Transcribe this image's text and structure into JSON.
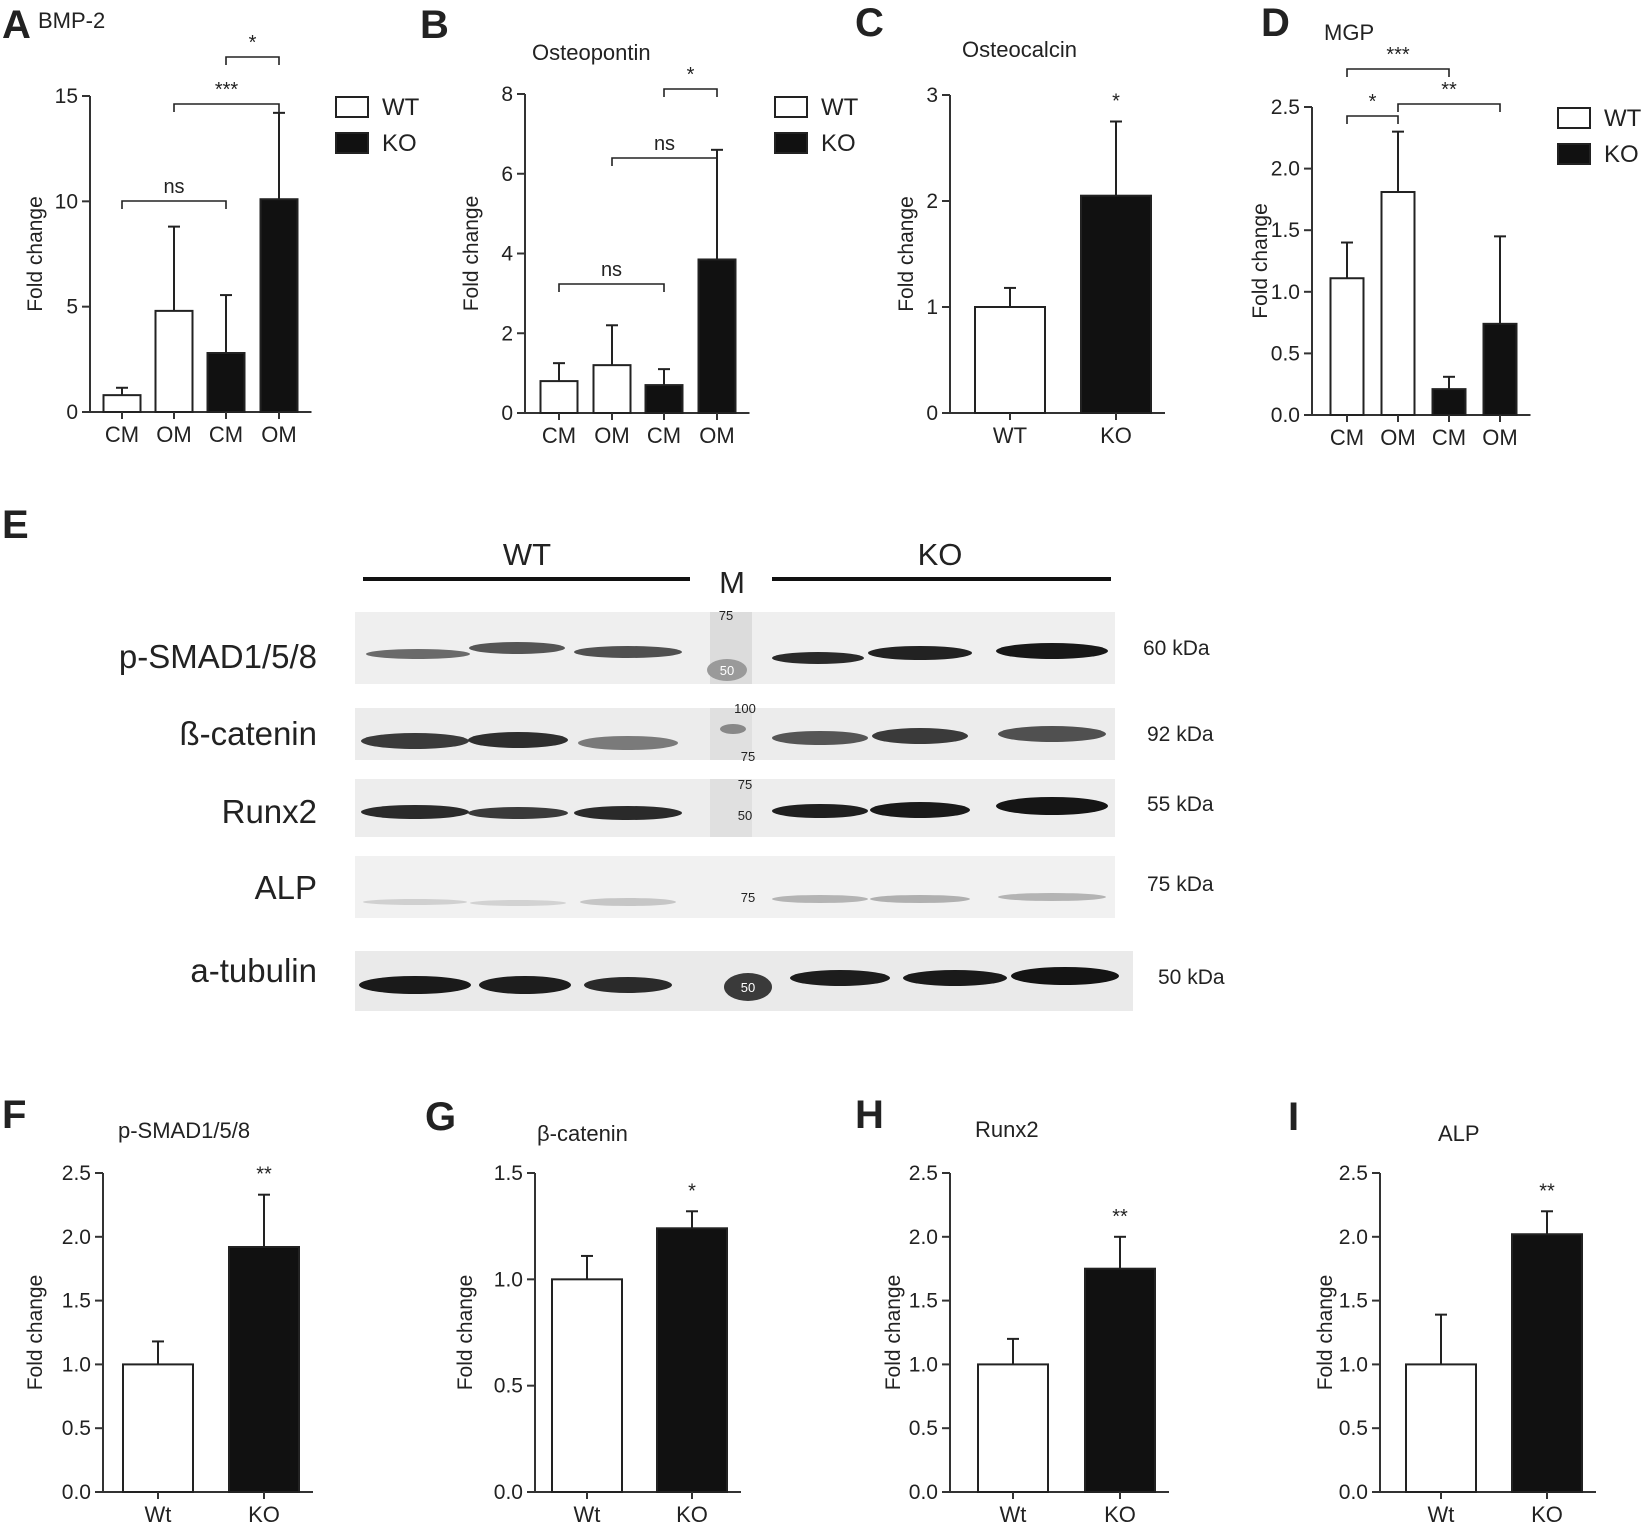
{
  "figure_title": "",
  "panels": {
    "A": {
      "letter": "A",
      "title": "BMP-2",
      "ylabel": "Fold change",
      "legend": [
        {
          "label": "WT",
          "fill": "#ffffff"
        },
        {
          "label": "KO",
          "fill": "#111111"
        }
      ]
    },
    "B": {
      "letter": "B",
      "title": "Osteopontin",
      "ylabel": "Fold change",
      "legend": [
        {
          "label": "WT",
          "fill": "#ffffff"
        },
        {
          "label": "KO",
          "fill": "#111111"
        }
      ]
    },
    "C": {
      "letter": "C",
      "title": "Osteocalcin",
      "ylabel": "Fold change"
    },
    "D": {
      "letter": "D",
      "title": "MGP",
      "ylabel": "Fold change",
      "legend": [
        {
          "label": "WT",
          "fill": "#ffffff"
        },
        {
          "label": "KO",
          "fill": "#111111"
        }
      ]
    },
    "F": {
      "letter": "F",
      "title": "p-SMAD1/5/8",
      "ylabel": "Fold change"
    },
    "G": {
      "letter": "G",
      "title": "β-catenin",
      "ylabel": "Fold change"
    },
    "H": {
      "letter": "H",
      "title": "Runx2",
      "ylabel": "Fold change"
    },
    "I": {
      "letter": "I",
      "title": "ALP",
      "ylabel": "Fold change"
    }
  },
  "blot": {
    "letter": "E",
    "groups": [
      "WT",
      "M",
      "KO"
    ],
    "rows": [
      {
        "label": "p-SMAD1/5/8",
        "kda": "60 kDa",
        "markers": [
          "75",
          "50"
        ]
      },
      {
        "label": "ß-catenin",
        "kda": "92 kDa",
        "markers": [
          "100",
          "75"
        ]
      },
      {
        "label": "Runx2",
        "kda": "55 kDa",
        "markers": [
          "75",
          "50"
        ]
      },
      {
        "label": "ALP",
        "kda": "75 kDa",
        "markers": [
          "75"
        ]
      },
      {
        "label": "a-tubulin",
        "kda": "50 kDa",
        "markers": [
          "50"
        ]
      }
    ]
  },
  "chart_data": [
    {
      "id": "A",
      "type": "bar",
      "title": "BMP-2",
      "ylabel": "Fold change",
      "categories": [
        "CM",
        "OM",
        "CM",
        "OM"
      ],
      "groups": [
        "WT",
        "WT",
        "KO",
        "KO"
      ],
      "values": [
        0.8,
        4.8,
        2.8,
        10.1
      ],
      "errors": [
        0.35,
        4.0,
        2.75,
        4.1
      ],
      "ylim": [
        0,
        15
      ],
      "yticks": [
        "0",
        "5",
        "10",
        "15"
      ],
      "legend": [
        "WT",
        "KO"
      ],
      "legend_position": "right",
      "significance": [
        {
          "from": 0,
          "to": 2,
          "label": "ns"
        },
        {
          "from": 1,
          "to": 3,
          "label": "***"
        },
        {
          "from": 2,
          "to": 3,
          "label": "*"
        }
      ]
    },
    {
      "id": "B",
      "type": "bar",
      "title": "Osteopontin",
      "ylabel": "Fold change",
      "categories": [
        "CM",
        "OM",
        "CM",
        "OM"
      ],
      "groups": [
        "WT",
        "WT",
        "KO",
        "KO"
      ],
      "values": [
        0.8,
        1.2,
        0.7,
        3.85
      ],
      "errors": [
        0.45,
        1.0,
        0.4,
        2.75
      ],
      "ylim": [
        0,
        8
      ],
      "yticks": [
        "0",
        "2",
        "4",
        "6",
        "8"
      ],
      "legend": [
        "WT",
        "KO"
      ],
      "legend_position": "right",
      "significance": [
        {
          "from": 0,
          "to": 2,
          "label": "ns"
        },
        {
          "from": 1,
          "to": 3,
          "label": "ns"
        },
        {
          "from": 2,
          "to": 3,
          "label": "*"
        }
      ]
    },
    {
      "id": "C",
      "type": "bar",
      "title": "Osteocalcin",
      "ylabel": "Fold change",
      "categories": [
        "WT",
        "KO"
      ],
      "groups": [
        "WT",
        "KO"
      ],
      "values": [
        1.0,
        2.05
      ],
      "errors": [
        0.18,
        0.7
      ],
      "ylim": [
        0,
        3
      ],
      "yticks": [
        "0",
        "1",
        "2",
        "3"
      ],
      "significance": [
        {
          "on": 1,
          "label": "*"
        }
      ]
    },
    {
      "id": "D",
      "type": "bar",
      "title": "MGP",
      "ylabel": "Fold change",
      "categories": [
        "CM",
        "OM",
        "CM",
        "OM"
      ],
      "groups": [
        "WT",
        "WT",
        "KO",
        "KO"
      ],
      "values": [
        1.11,
        1.81,
        0.21,
        0.74
      ],
      "errors": [
        0.29,
        0.49,
        0.1,
        0.71
      ],
      "ylim": [
        0,
        2.5
      ],
      "yticks": [
        "0.0",
        "0.5",
        "1.0",
        "1.5",
        "2.0",
        "2.5"
      ],
      "legend": [
        "WT",
        "KO"
      ],
      "legend_position": "right",
      "significance": [
        {
          "from": 0,
          "to": 1,
          "label": "*"
        },
        {
          "from": 0,
          "to": 2,
          "label": "***"
        },
        {
          "from": 1,
          "to": 3,
          "label": "**"
        }
      ]
    },
    {
      "id": "F",
      "type": "bar",
      "title": "p-SMAD1/5/8",
      "ylabel": "Fold change",
      "categories": [
        "Wt",
        "KO"
      ],
      "groups": [
        "WT",
        "KO"
      ],
      "values": [
        1.0,
        1.92
      ],
      "errors": [
        0.18,
        0.41
      ],
      "ylim": [
        0,
        2.5
      ],
      "yticks": [
        "0.0",
        "0.5",
        "1.0",
        "1.5",
        "2.0",
        "2.5"
      ],
      "significance": [
        {
          "on": 1,
          "label": "**"
        }
      ]
    },
    {
      "id": "G",
      "type": "bar",
      "title": "β-catenin",
      "ylabel": "Fold change",
      "categories": [
        "Wt",
        "KO"
      ],
      "groups": [
        "WT",
        "KO"
      ],
      "values": [
        1.0,
        1.24
      ],
      "errors": [
        0.11,
        0.08
      ],
      "ylim": [
        0,
        1.5
      ],
      "yticks": [
        "0.0",
        "0.5",
        "1.0",
        "1.5"
      ],
      "significance": [
        {
          "on": 1,
          "label": "*"
        }
      ]
    },
    {
      "id": "H",
      "type": "bar",
      "title": "Runx2",
      "ylabel": "Fold change",
      "categories": [
        "Wt",
        "KO"
      ],
      "groups": [
        "WT",
        "KO"
      ],
      "values": [
        1.0,
        1.75
      ],
      "errors": [
        0.2,
        0.25
      ],
      "ylim": [
        0,
        2.5
      ],
      "yticks": [
        "0.0",
        "0.5",
        "1.0",
        "1.5",
        "2.0",
        "2.5"
      ],
      "significance": [
        {
          "on": 1,
          "label": "**"
        }
      ]
    },
    {
      "id": "I",
      "type": "bar",
      "title": "ALP",
      "ylabel": "Fold change",
      "categories": [
        "Wt",
        "KO"
      ],
      "groups": [
        "WT",
        "KO"
      ],
      "values": [
        1.0,
        2.02
      ],
      "errors": [
        0.39,
        0.18
      ],
      "ylim": [
        0,
        2.5
      ],
      "yticks": [
        "0.0",
        "0.5",
        "1.0",
        "1.5",
        "2.0",
        "2.5"
      ],
      "significance": [
        {
          "on": 1,
          "label": "**"
        }
      ]
    }
  ],
  "colors": {
    "wt_fill": "#ffffff",
    "ko_fill": "#111111",
    "axis": "#333333"
  }
}
